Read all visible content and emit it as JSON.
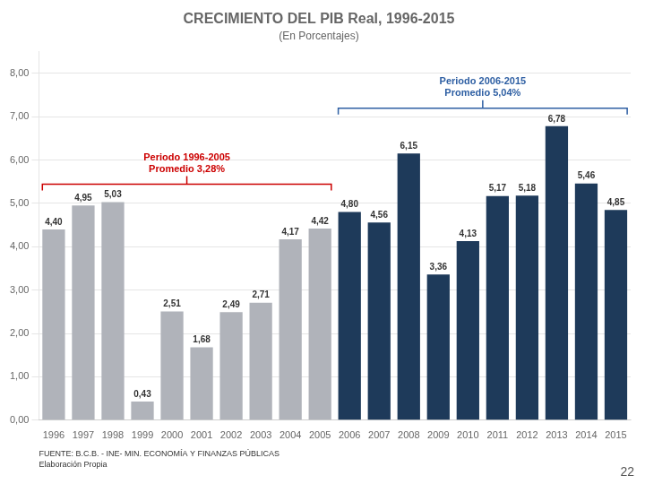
{
  "chart_data": {
    "type": "bar",
    "title": "CRECIMIENTO DEL PIB Real, 1996-2015",
    "subtitle": "(En Porcentajes)",
    "categories": [
      "1996",
      "1997",
      "1998",
      "1999",
      "2000",
      "2001",
      "2002",
      "2003",
      "2004",
      "2005",
      "2006",
      "2007",
      "2008",
      "2009",
      "2010",
      "2011",
      "2012",
      "2013",
      "2014",
      "2015"
    ],
    "values": [
      4.4,
      4.95,
      5.03,
      0.43,
      2.51,
      1.68,
      2.49,
      2.71,
      4.17,
      4.42,
      4.8,
      4.56,
      6.15,
      3.36,
      4.13,
      5.17,
      5.18,
      6.78,
      5.46,
      4.85
    ],
    "value_labels": [
      "4,40",
      "4,95",
      "5,03",
      "0,43",
      "2,51",
      "1,68",
      "2,49",
      "2,71",
      "4,17",
      "4,42",
      "4,80",
      "4,56",
      "6,15",
      "3,36",
      "4,13",
      "5,17",
      "5,18",
      "6,78",
      "5,46",
      "4,85"
    ],
    "colors": [
      "#b0b3ba",
      "#b0b3ba",
      "#b0b3ba",
      "#b0b3ba",
      "#b0b3ba",
      "#b0b3ba",
      "#b0b3ba",
      "#b0b3ba",
      "#b0b3ba",
      "#b0b3ba",
      "#1e3a5a",
      "#1e3a5a",
      "#1e3a5a",
      "#1e3a5a",
      "#1e3a5a",
      "#1e3a5a",
      "#1e3a5a",
      "#1e3a5a",
      "#1e3a5a",
      "#1e3a5a"
    ],
    "ylim": [
      0,
      8.5
    ],
    "yticks": [
      {
        "value": 0,
        "label": "0,00"
      },
      {
        "value": 1,
        "label": "1,00"
      },
      {
        "value": 2,
        "label": "2,00"
      },
      {
        "value": 3,
        "label": "3,00"
      },
      {
        "value": 4,
        "label": "4,00"
      },
      {
        "value": 5,
        "label": "5,00"
      },
      {
        "value": 6,
        "label": "6,00"
      },
      {
        "value": 7,
        "label": "7,00"
      },
      {
        "value": 8,
        "label": "8,00"
      }
    ],
    "grid": true,
    "data_labels": true,
    "annotations": [
      {
        "text": [
          "Periodo 1996-2005",
          "Promedio 3,28%"
        ],
        "color": "#cc0000"
      },
      {
        "text": [
          "Periodo 2006-2015",
          "Promedio 5,04%"
        ],
        "color": "#2e5fa3"
      }
    ],
    "source": "FUENTE: B.C.B. - INE- MIN. ECONOMÍA Y FINANZAS PÚBLICAS\nElaboración Propia",
    "page_number": "22"
  }
}
